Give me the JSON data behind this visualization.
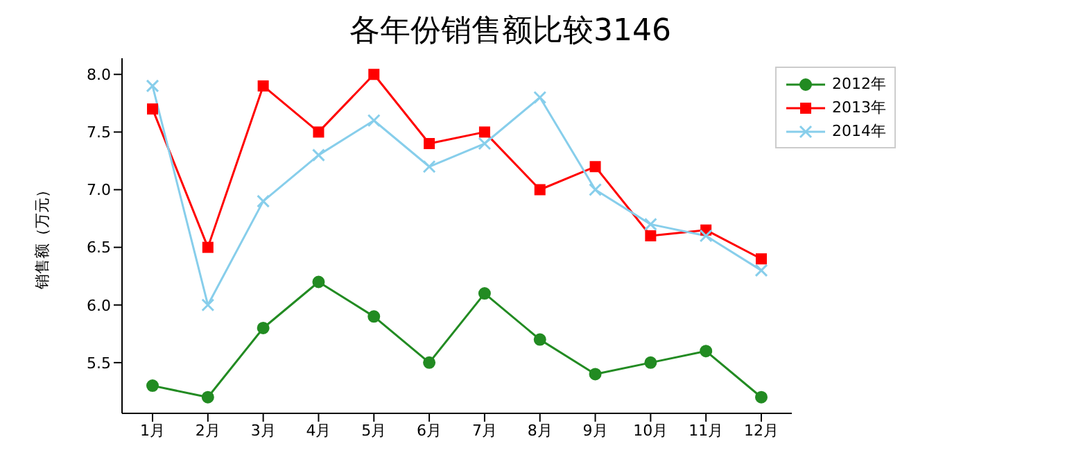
{
  "chart_data": {
    "type": "line",
    "title": "各年份销售额比较3146",
    "ylabel": "销售额（万元）",
    "categories": [
      "1月",
      "2月",
      "3月",
      "4月",
      "5月",
      "6月",
      "7月",
      "8月",
      "9月",
      "10月",
      "11月",
      "12月"
    ],
    "series": [
      {
        "name": "2012年",
        "color": "#228b22",
        "marker": "circle",
        "values": [
          5.3,
          5.2,
          5.8,
          6.2,
          5.9,
          5.5,
          6.1,
          5.7,
          5.4,
          5.5,
          5.6,
          5.2
        ]
      },
      {
        "name": "2013年",
        "color": "#ff0000",
        "marker": "square",
        "values": [
          7.7,
          6.5,
          7.9,
          7.5,
          8.0,
          7.4,
          7.5,
          7.0,
          7.2,
          6.6,
          6.65,
          6.4
        ]
      },
      {
        "name": "2014年",
        "color": "#87ceeb",
        "marker": "cross",
        "values": [
          7.9,
          6.0,
          6.9,
          7.3,
          7.6,
          7.2,
          7.4,
          7.8,
          7.0,
          6.7,
          6.6,
          6.3
        ]
      }
    ],
    "ylim": [
      5.06,
      8.14
    ],
    "yticks": [
      {
        "value": 5.5,
        "label": "5.5"
      },
      {
        "value": 6.0,
        "label": "6.0"
      },
      {
        "value": 6.5,
        "label": "6.5"
      },
      {
        "value": 7.0,
        "label": "7.0"
      },
      {
        "value": 7.5,
        "label": "7.5"
      },
      {
        "value": 8.0,
        "label": "8.0"
      }
    ],
    "grid": false,
    "legend": "top right"
  }
}
